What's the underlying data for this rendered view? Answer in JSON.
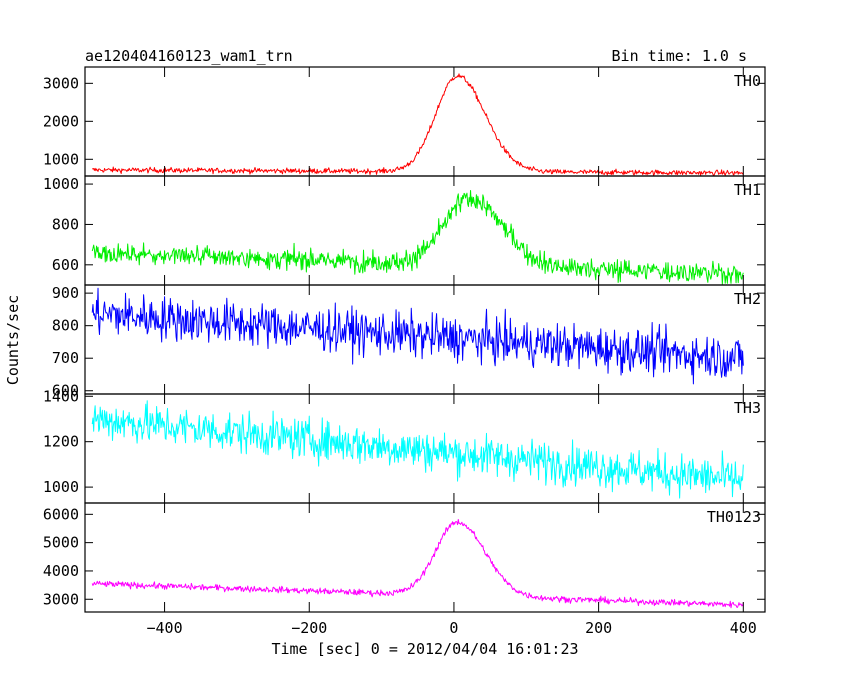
{
  "chart_data": {
    "type": "line",
    "title": "ae120404160123_wam1_trn",
    "bin_time_label": "Bin time: 1.0 s",
    "xlabel": "Time [sec] 0 = 2012/04/04 16:01:23",
    "ylabel": "Counts/sec",
    "xlim": [
      -510,
      430
    ],
    "x_ticks": [
      -400,
      -200,
      0,
      200,
      400
    ],
    "x_tick_labels": [
      "−400",
      "−200",
      "0",
      "200",
      "400"
    ],
    "x_range": [
      -500,
      400
    ],
    "grid": false,
    "panels": [
      {
        "name": "TH0",
        "color": "#ff0000",
        "ylim": [
          560,
          3430
        ],
        "y_ticks": [
          1000,
          2000,
          3000
        ],
        "y_tick_labels": [
          "1000",
          "2000",
          "3000"
        ],
        "profile": {
          "base": [
            720,
            640
          ],
          "peak": 2520,
          "peak_time": 5,
          "rise_sigma": 30,
          "decay_sigma": 38,
          "noise": 35,
          "jitter": 0
        }
      },
      {
        "name": "TH1",
        "color": "#00ee00",
        "ylim": [
          500,
          1040
        ],
        "y_ticks": [
          600,
          800,
          1000
        ],
        "y_tick_labels": [
          "600",
          "800",
          "1000"
        ],
        "profile": {
          "base": [
            660,
            555
          ],
          "peak": 330,
          "peak_time": 22,
          "rise_sigma": 35,
          "decay_sigma": 45,
          "noise": 24,
          "jitter": 10
        }
      },
      {
        "name": "TH2",
        "color": "#0000ff",
        "ylim": [
          590,
          925
        ],
        "y_ticks": [
          600,
          700,
          800,
          900
        ],
        "y_tick_labels": [
          "600",
          "700",
          "800",
          "900"
        ],
        "profile": {
          "base": [
            838,
            700
          ],
          "peak": 0,
          "peak_time": 0,
          "rise_sigma": 30,
          "decay_sigma": 30,
          "noise": 34,
          "jitter": 0
        }
      },
      {
        "name": "TH3",
        "color": "#00ffff",
        "ylim": [
          930,
          1410
        ],
        "y_ticks": [
          1000,
          1200,
          1400
        ],
        "y_tick_labels": [
          "1000",
          "1200",
          "1400"
        ],
        "profile": {
          "base": [
            1300,
            1030
          ],
          "peak": 0,
          "peak_time": 0,
          "rise_sigma": 30,
          "decay_sigma": 30,
          "noise": 45,
          "jitter": 0
        }
      },
      {
        "name": "TH0123",
        "color": "#ff00ff",
        "ylim": [
          2550,
          6400
        ],
        "y_ticks": [
          3000,
          4000,
          5000,
          6000
        ],
        "y_tick_labels": [
          "3000",
          "4000",
          "5000",
          "6000"
        ],
        "profile": {
          "base": [
            3550,
            2800
          ],
          "peak": 2600,
          "peak_time": 5,
          "rise_sigma": 30,
          "decay_sigma": 38,
          "noise": 55,
          "jitter": 0
        }
      }
    ]
  }
}
